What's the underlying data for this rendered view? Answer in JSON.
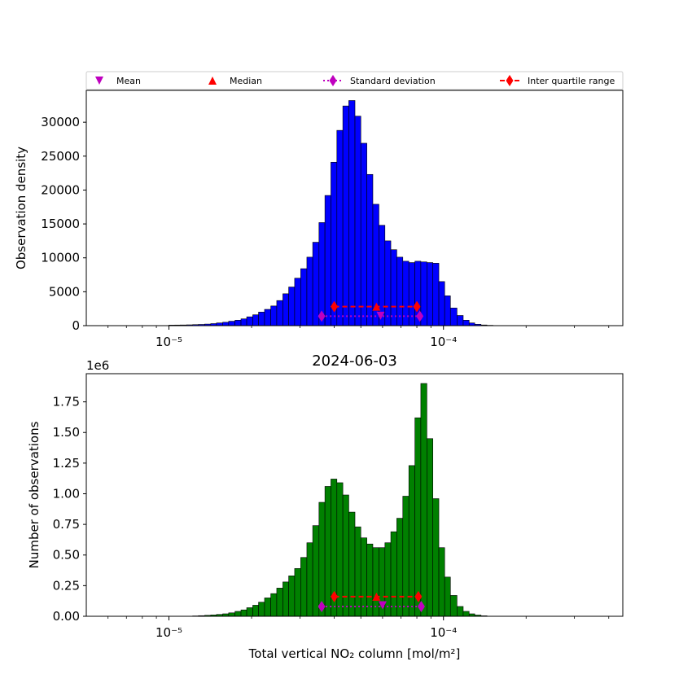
{
  "chart_data": [
    {
      "type": "bar",
      "xscale": "log",
      "xlim": [
        5e-06,
        0.00045
      ],
      "ylim": [
        0,
        34700
      ],
      "ylabel": "Observation density",
      "xlabel": "",
      "title": "",
      "bar_color": "#0000ff",
      "edge_color": "#000000",
      "xtick_labels": [
        "10⁻⁵",
        "10⁻⁴"
      ],
      "xtick_values": [
        1e-05,
        0.0001
      ],
      "ytick_labels": [
        "0",
        "5000",
        "10000",
        "15000",
        "20000",
        "25000",
        "30000"
      ],
      "ytick_values": [
        0,
        5000,
        10000,
        15000,
        20000,
        25000,
        30000
      ],
      "bins": {
        "log_start": -5.3,
        "log_step": 0.02
      },
      "values": [
        0,
        0,
        0,
        0,
        0,
        0,
        0,
        0,
        0,
        0,
        0,
        0,
        0,
        0,
        0,
        0,
        0,
        0,
        0,
        0,
        0,
        0,
        0,
        0,
        0,
        0,
        0,
        0,
        0,
        0,
        0,
        0,
        0,
        0,
        0,
        0,
        0,
        0,
        0,
        0,
        0,
        0,
        0,
        0,
        0,
        0,
        0,
        0,
        0,
        0,
        0,
        0,
        0,
        0,
        0,
        0,
        0,
        0,
        0,
        0,
        0,
        0,
        0,
        0,
        0,
        0,
        0,
        0,
        0,
        0,
        0,
        0,
        0,
        0,
        0,
        0,
        0,
        0,
        0,
        0,
        0,
        0,
        0,
        0,
        0,
        0,
        0,
        0,
        0,
        0,
        0,
        0,
        0,
        0,
        0,
        0,
        0,
        0,
        0,
        0,
        0,
        0,
        0,
        0,
        0,
        0,
        0,
        0,
        0,
        0,
        0,
        0,
        0,
        0,
        0,
        0,
        0,
        0,
        0,
        0,
        0,
        0,
        0,
        0,
        0,
        0,
        0,
        0,
        0,
        0,
        0,
        0,
        0,
        0,
        0,
        0,
        0,
        0,
        0,
        0,
        0,
        0,
        0,
        0,
        0,
        0,
        0,
        0,
        0,
        0,
        0,
        0,
        0,
        0,
        0,
        0,
        0,
        0,
        0,
        0,
        0,
        0,
        0,
        0,
        0,
        0,
        0,
        0,
        0,
        0,
        0,
        0,
        0,
        0,
        0,
        0,
        0,
        0,
        0,
        0
      ],
      "bars": [
        {
          "x0": 1e-05,
          "v": 80
        },
        {
          "x0": 1.05e-05,
          "v": 90
        },
        {
          "x0": 1.1e-05,
          "v": 100
        },
        {
          "x0": 1.16e-05,
          "v": 120
        },
        {
          "x0": 1.22e-05,
          "v": 150
        },
        {
          "x0": 1.28e-05,
          "v": 180
        },
        {
          "x0": 1.35e-05,
          "v": 230
        },
        {
          "x0": 1.42e-05,
          "v": 300
        },
        {
          "x0": 1.49e-05,
          "v": 400
        },
        {
          "x0": 1.57e-05,
          "v": 500
        },
        {
          "x0": 1.65e-05,
          "v": 650
        },
        {
          "x0": 1.74e-05,
          "v": 800
        },
        {
          "x0": 1.83e-05,
          "v": 1000
        },
        {
          "x0": 1.92e-05,
          "v": 1300
        },
        {
          "x0": 2.02e-05,
          "v": 1600
        },
        {
          "x0": 2.12e-05,
          "v": 2000
        },
        {
          "x0": 2.23e-05,
          "v": 2400
        },
        {
          "x0": 2.35e-05,
          "v": 2900
        },
        {
          "x0": 2.47e-05,
          "v": 3700
        },
        {
          "x0": 2.6e-05,
          "v": 4700
        },
        {
          "x0": 2.73e-05,
          "v": 5700
        },
        {
          "x0": 2.87e-05,
          "v": 7000
        },
        {
          "x0": 3.02e-05,
          "v": 8400
        },
        {
          "x0": 3.18e-05,
          "v": 10100
        },
        {
          "x0": 3.34e-05,
          "v": 12300
        },
        {
          "x0": 3.52e-05,
          "v": 15200
        },
        {
          "x0": 3.7e-05,
          "v": 19200
        },
        {
          "x0": 3.89e-05,
          "v": 24100
        },
        {
          "x0": 4.09e-05,
          "v": 28800
        },
        {
          "x0": 4.3e-05,
          "v": 32400
        },
        {
          "x0": 4.52e-05,
          "v": 33200
        },
        {
          "x0": 4.76e-05,
          "v": 30900
        },
        {
          "x0": 5e-05,
          "v": 26900
        },
        {
          "x0": 5.26e-05,
          "v": 22300
        },
        {
          "x0": 5.53e-05,
          "v": 17900
        },
        {
          "x0": 5.82e-05,
          "v": 14800
        },
        {
          "x0": 6.12e-05,
          "v": 12500
        },
        {
          "x0": 6.43e-05,
          "v": 11200
        },
        {
          "x0": 6.76e-05,
          "v": 10100
        },
        {
          "x0": 7.11e-05,
          "v": 9500
        },
        {
          "x0": 7.48e-05,
          "v": 9300
        },
        {
          "x0": 7.87e-05,
          "v": 9500
        },
        {
          "x0": 8.27e-05,
          "v": 9400
        },
        {
          "x0": 8.7e-05,
          "v": 9300
        },
        {
          "x0": 9.15e-05,
          "v": 9200
        },
        {
          "x0": 9.62e-05,
          "v": 6500
        },
        {
          "x0": 0.000101,
          "v": 4400
        },
        {
          "x0": 0.000106,
          "v": 2600
        },
        {
          "x0": 0.000112,
          "v": 1500
        },
        {
          "x0": 0.000118,
          "v": 800
        },
        {
          "x0": 0.000124,
          "v": 400
        },
        {
          "x0": 0.00013,
          "v": 200
        },
        {
          "x0": 0.000137,
          "v": 100
        },
        {
          "x0": 0.000144,
          "v": 50
        }
      ],
      "stats": {
        "mean": 5.9e-05,
        "median": 5.7e-05,
        "std_range": [
          3.6e-05,
          8.2e-05
        ],
        "iqr_range": [
          4e-05,
          8e-05
        ],
        "std_y": 1400,
        "iqr_y": 2800,
        "mean_y": 1450,
        "median_y": 2800
      }
    },
    {
      "type": "bar",
      "xscale": "log",
      "xlim": [
        5e-06,
        0.00045
      ],
      "ylim": [
        0,
        1980000.0
      ],
      "ylabel": "Number of observations",
      "xlabel": "Total vertical NO₂ column [mol/m²]",
      "title": "2024-06-03",
      "offset_label": "1e6",
      "bar_color": "#008000",
      "edge_color": "#000000",
      "xtick_labels": [
        "10⁻⁵",
        "10⁻⁴"
      ],
      "xtick_values": [
        1e-05,
        0.0001
      ],
      "ytick_labels": [
        "0.00",
        "0.25",
        "0.50",
        "0.75",
        "1.00",
        "1.25",
        "1.50",
        "1.75"
      ],
      "ytick_values": [
        0,
        250000,
        500000,
        750000,
        1000000,
        1250000,
        1500000,
        1750000
      ],
      "bars": [
        {
          "x0": 1.22e-05,
          "v": 3000
        },
        {
          "x0": 1.28e-05,
          "v": 5000
        },
        {
          "x0": 1.35e-05,
          "v": 8000
        },
        {
          "x0": 1.42e-05,
          "v": 11000
        },
        {
          "x0": 1.49e-05,
          "v": 15000
        },
        {
          "x0": 1.57e-05,
          "v": 20000
        },
        {
          "x0": 1.65e-05,
          "v": 28000
        },
        {
          "x0": 1.74e-05,
          "v": 40000
        },
        {
          "x0": 1.83e-05,
          "v": 52000
        },
        {
          "x0": 1.92e-05,
          "v": 70000
        },
        {
          "x0": 2.02e-05,
          "v": 90000
        },
        {
          "x0": 2.12e-05,
          "v": 115000
        },
        {
          "x0": 2.23e-05,
          "v": 150000
        },
        {
          "x0": 2.35e-05,
          "v": 185000
        },
        {
          "x0": 2.47e-05,
          "v": 230000
        },
        {
          "x0": 2.6e-05,
          "v": 280000
        },
        {
          "x0": 2.73e-05,
          "v": 330000
        },
        {
          "x0": 2.87e-05,
          "v": 390000
        },
        {
          "x0": 3.02e-05,
          "v": 480000
        },
        {
          "x0": 3.18e-05,
          "v": 600000
        },
        {
          "x0": 3.34e-05,
          "v": 740000
        },
        {
          "x0": 3.52e-05,
          "v": 930000
        },
        {
          "x0": 3.7e-05,
          "v": 1060000
        },
        {
          "x0": 3.89e-05,
          "v": 1120000
        },
        {
          "x0": 4.09e-05,
          "v": 1090000
        },
        {
          "x0": 4.3e-05,
          "v": 990000
        },
        {
          "x0": 4.52e-05,
          "v": 850000
        },
        {
          "x0": 4.76e-05,
          "v": 730000
        },
        {
          "x0": 5e-05,
          "v": 640000
        },
        {
          "x0": 5.26e-05,
          "v": 590000
        },
        {
          "x0": 5.53e-05,
          "v": 560000
        },
        {
          "x0": 5.82e-05,
          "v": 560000
        },
        {
          "x0": 6.12e-05,
          "v": 600000
        },
        {
          "x0": 6.43e-05,
          "v": 690000
        },
        {
          "x0": 6.76e-05,
          "v": 800000
        },
        {
          "x0": 7.11e-05,
          "v": 980000
        },
        {
          "x0": 7.48e-05,
          "v": 1230000
        },
        {
          "x0": 7.87e-05,
          "v": 1620000
        },
        {
          "x0": 8.27e-05,
          "v": 1900000
        },
        {
          "x0": 8.7e-05,
          "v": 1450000
        },
        {
          "x0": 9.15e-05,
          "v": 960000
        },
        {
          "x0": 9.62e-05,
          "v": 560000
        },
        {
          "x0": 0.000101,
          "v": 320000
        },
        {
          "x0": 0.000106,
          "v": 170000
        },
        {
          "x0": 0.000112,
          "v": 80000
        },
        {
          "x0": 0.000118,
          "v": 40000
        },
        {
          "x0": 0.000124,
          "v": 20000
        },
        {
          "x0": 0.00013,
          "v": 10000
        },
        {
          "x0": 0.000137,
          "v": 4000
        }
      ],
      "stats": {
        "mean": 6e-05,
        "median": 5.7e-05,
        "std_range": [
          3.6e-05,
          8.3e-05
        ],
        "iqr_range": [
          4e-05,
          8.1e-05
        ],
        "std_y": 80000,
        "iqr_y": 160000,
        "mean_y": 90000,
        "median_y": 160000
      }
    }
  ],
  "legend": {
    "placement": "top",
    "items": [
      {
        "label": "Mean",
        "marker": "triangle-down",
        "color": "#bf00bf"
      },
      {
        "label": "Median",
        "marker": "triangle-up",
        "color": "#ff0000"
      },
      {
        "label": "Standard deviation",
        "marker": "diamond-dotted",
        "color": "#bf00bf"
      },
      {
        "label": "Inter quartile range",
        "marker": "diamond-dashed",
        "color": "#ff0000"
      }
    ]
  }
}
